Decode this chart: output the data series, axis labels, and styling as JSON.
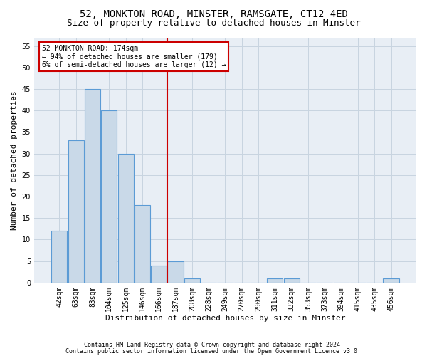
{
  "title1": "52, MONKTON ROAD, MINSTER, RAMSGATE, CT12 4ED",
  "title2": "Size of property relative to detached houses in Minster",
  "xlabel": "Distribution of detached houses by size in Minster",
  "ylabel": "Number of detached properties",
  "categories": [
    "42sqm",
    "63sqm",
    "83sqm",
    "104sqm",
    "125sqm",
    "146sqm",
    "166sqm",
    "187sqm",
    "208sqm",
    "228sqm",
    "249sqm",
    "270sqm",
    "290sqm",
    "311sqm",
    "332sqm",
    "353sqm",
    "373sqm",
    "394sqm",
    "415sqm",
    "435sqm",
    "456sqm"
  ],
  "values": [
    12,
    33,
    45,
    40,
    30,
    18,
    4,
    5,
    1,
    0,
    0,
    0,
    0,
    1,
    1,
    0,
    0,
    0,
    0,
    0,
    1
  ],
  "bar_color": "#c9d9e8",
  "bar_edge_color": "#5b9bd5",
  "vline_x": 6.5,
  "vline_color": "#cc0000",
  "annotation_text": "52 MONKTON ROAD: 174sqm\n← 94% of detached houses are smaller (179)\n6% of semi-detached houses are larger (12) →",
  "annotation_box_color": "#ffffff",
  "annotation_box_edge": "#cc0000",
  "ylim": [
    0,
    57
  ],
  "yticks": [
    0,
    5,
    10,
    15,
    20,
    25,
    30,
    35,
    40,
    45,
    50,
    55
  ],
  "footer1": "Contains HM Land Registry data © Crown copyright and database right 2024.",
  "footer2": "Contains public sector information licensed under the Open Government Licence v3.0.",
  "bg_color": "#ffffff",
  "plot_bg_color": "#e8eef5",
  "grid_color": "#c8d4e0",
  "title1_fontsize": 10,
  "title2_fontsize": 9,
  "tick_fontsize": 7,
  "ylabel_fontsize": 8,
  "xlabel_fontsize": 8,
  "annot_fontsize": 7,
  "footer_fontsize": 6
}
